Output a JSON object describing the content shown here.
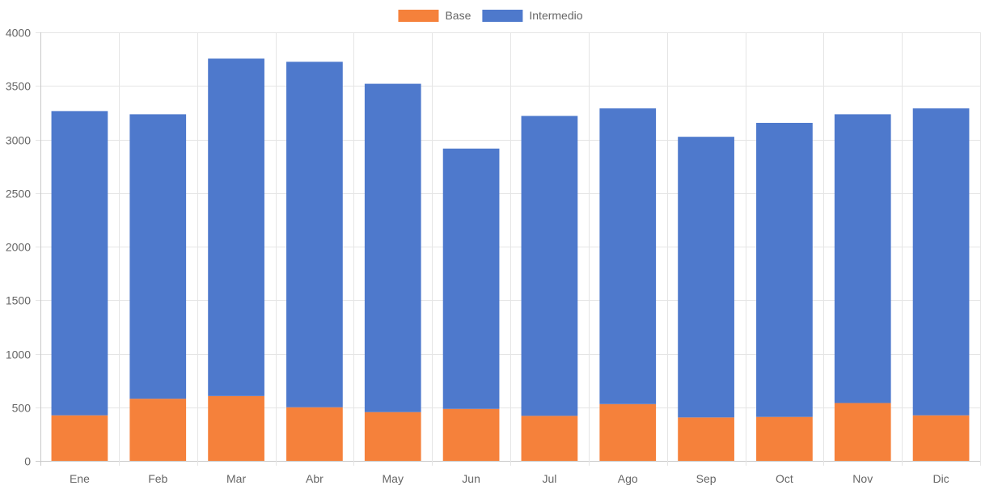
{
  "chart_data": {
    "type": "bar",
    "stacked": true,
    "categories": [
      "Ene",
      "Feb",
      "Mar",
      "Abr",
      "May",
      "Jun",
      "Jul",
      "Ago",
      "Sep",
      "Oct",
      "Nov",
      "Dic"
    ],
    "series": [
      {
        "name": "Base",
        "color": "#f5813b",
        "values": [
          425,
          580,
          605,
          500,
          455,
          485,
          420,
          530,
          405,
          410,
          540,
          425
        ]
      },
      {
        "name": "Intermedio",
        "color": "#4e79cc",
        "values": [
          2840,
          2655,
          3150,
          3225,
          3065,
          2430,
          2800,
          2760,
          2620,
          2745,
          2695,
          2865
        ]
      }
    ],
    "ylim": [
      0,
      4000
    ],
    "yticks": [
      0,
      500,
      1000,
      1500,
      2000,
      2500,
      3000,
      3500,
      4000
    ],
    "grid": true,
    "legend_position": "top-center",
    "title": "",
    "xlabel": "",
    "ylabel": ""
  }
}
